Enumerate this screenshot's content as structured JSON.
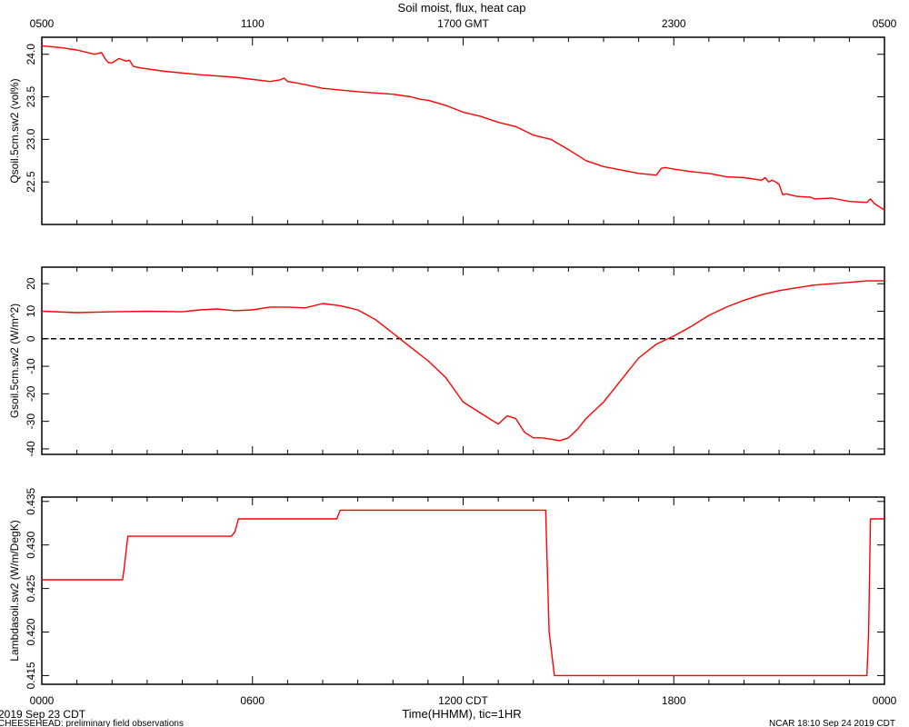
{
  "chart_data": {
    "title": "Soil moist, flux, heat cap",
    "top_axis_ticks": [
      "0500",
      "1100",
      "1700 GMT",
      "2300",
      "0500"
    ],
    "bottom_axis_ticks": [
      "0000",
      "0600",
      "1200 CDT",
      "1800",
      "0000"
    ],
    "xlabel": "Time(HHMM), tic=1HR",
    "footer_left_date": "2019 Sep 23 CDT",
    "footer_left_note": "CHEESEHEAD: preliminary field observations",
    "footer_right": "NCAR 18:10 Sep 24 2019 CDT",
    "xlim_hours": [
      0,
      24
    ],
    "colors": {
      "series": "#ff0000",
      "axis": "#000000"
    },
    "panels": [
      {
        "type": "line",
        "ylabel": "Qsoil.5cm.sw2 (vol%)",
        "ylim": [
          22.0,
          24.2
        ],
        "yticks": [
          22.5,
          23.0,
          23.5,
          24.0
        ],
        "ytick_labels": [
          "22.5",
          "23.0",
          "23.5",
          "24.0"
        ],
        "series": [
          {
            "x": [
              0,
              0.5,
              1.0,
              1.5,
              1.7,
              1.8,
              1.9,
              2.0,
              2.2,
              2.4,
              2.5,
              2.6,
              2.7,
              2.8,
              3.5,
              4.5,
              5.5,
              6.5,
              6.8,
              6.9,
              7.0,
              7.3,
              8.0,
              9.0,
              10.0,
              10.5,
              10.8,
              11.0,
              11.5,
              12.0,
              12.5,
              13.0,
              13.5,
              14.0,
              14.5,
              15.0,
              15.5,
              16.0,
              16.5,
              17.0,
              17.5,
              17.65,
              17.75,
              18.0,
              18.5,
              19.0,
              19.5,
              20.0,
              20.5,
              20.6,
              20.7,
              20.8,
              20.9,
              21.0,
              21.1,
              21.2,
              21.5,
              21.9,
              22.0,
              22.5,
              23.0,
              23.5,
              23.6,
              23.7,
              24.0
            ],
            "y": [
              24.1,
              24.08,
              24.05,
              24.0,
              24.02,
              23.95,
              23.9,
              23.9,
              23.95,
              23.92,
              23.93,
              23.86,
              23.85,
              23.84,
              23.8,
              23.76,
              23.73,
              23.68,
              23.7,
              23.72,
              23.68,
              23.66,
              23.6,
              23.56,
              23.53,
              23.5,
              23.47,
              23.46,
              23.4,
              23.32,
              23.27,
              23.2,
              23.15,
              23.05,
              23.0,
              22.88,
              22.75,
              22.68,
              22.64,
              22.6,
              22.58,
              22.66,
              22.67,
              22.65,
              22.62,
              22.6,
              22.56,
              22.55,
              22.52,
              22.55,
              22.5,
              22.52,
              22.5,
              22.47,
              22.35,
              22.36,
              22.33,
              22.32,
              22.3,
              22.31,
              22.27,
              22.26,
              22.3,
              22.25,
              22.17
            ]
          }
        ]
      },
      {
        "type": "line",
        "ylabel": "Gsoil.5cm.sw2 (W/m^2)",
        "ylim": [
          -42,
          26
        ],
        "yticks": [
          -40,
          -30,
          -20,
          -10,
          0,
          10,
          20
        ],
        "ytick_labels": [
          "-40",
          "-30",
          "-20",
          "-10",
          "0",
          "10",
          "20"
        ],
        "zero_line": 0,
        "series": [
          {
            "x": [
              0,
              1,
              2,
              3,
              4,
              4.5,
              5.0,
              5.5,
              6.0,
              6.5,
              7.0,
              7.5,
              8.0,
              8.5,
              9.0,
              9.5,
              10.0,
              10.3,
              10.5,
              11.0,
              11.5,
              12.0,
              12.5,
              13.0,
              13.25,
              13.5,
              13.75,
              14.0,
              14.25,
              14.5,
              14.75,
              15.0,
              15.25,
              15.5,
              16.0,
              16.5,
              17.0,
              17.5,
              18.0,
              18.5,
              19.0,
              19.5,
              20.0,
              20.5,
              21.0,
              21.5,
              22.0,
              22.5,
              23.0,
              23.5,
              24.0
            ],
            "y": [
              10,
              9.5,
              9.8,
              10,
              9.8,
              10.5,
              10.8,
              10.2,
              10.5,
              11.5,
              11.5,
              11.2,
              12.8,
              12,
              10.5,
              7,
              2,
              -1,
              -3,
              -8,
              -14,
              -23,
              -27,
              -31,
              -28,
              -29,
              -34,
              -36,
              -36,
              -36.5,
              -37,
              -36,
              -33,
              -29,
              -23,
              -15,
              -7,
              -2,
              1,
              4.5,
              8.5,
              11.5,
              14,
              16,
              17.5,
              18.5,
              19.5,
              20,
              20.5,
              21,
              21
            ]
          }
        ]
      },
      {
        "type": "line",
        "ylabel": "Lambdasoil.sw2 (W/m/DegK)",
        "ylim": [
          0.414,
          0.4355
        ],
        "yticks": [
          0.415,
          0.42,
          0.425,
          0.43,
          0.435
        ],
        "ytick_labels": [
          "0.415",
          "0.420",
          "0.425",
          "0.430",
          "0.435"
        ],
        "series": [
          {
            "x": [
              0,
              2.3,
              2.35,
              2.45,
              5.4,
              5.5,
              5.6,
              8.4,
              8.5,
              14.35,
              14.45,
              14.6,
              23.5,
              23.55,
              23.6,
              24.0
            ],
            "y": [
              0.426,
              0.426,
              0.4275,
              0.431,
              0.431,
              0.4315,
              0.433,
              0.433,
              0.434,
              0.434,
              0.42,
              0.415,
              0.415,
              0.42,
              0.433,
              0.433
            ]
          }
        ]
      }
    ]
  }
}
